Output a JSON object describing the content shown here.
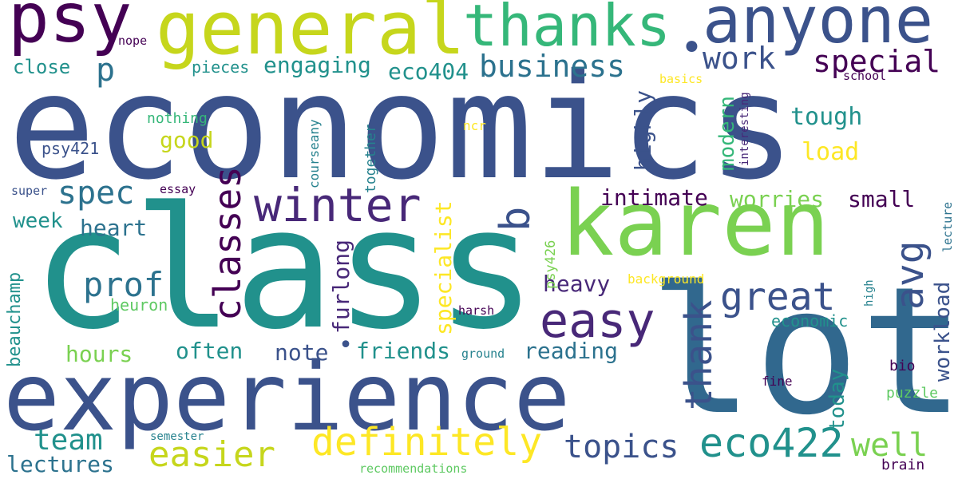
{
  "words": [
    "economics",
    "class",
    "lot",
    "experience",
    "karen",
    "general",
    "anyone",
    "thanks",
    "psy",
    "winter",
    "easy",
    "definitely",
    "eco422",
    "business",
    "great",
    "spec",
    "easier",
    "topics",
    "classes",
    "special",
    "avg",
    "thank",
    "work",
    "b",
    "p",
    "prof",
    "team",
    "well",
    "lectures",
    "eco404",
    "engaging",
    "intimate",
    "worries",
    "small",
    "heart",
    "week",
    "note",
    "friends",
    "reading",
    "often",
    "hours",
    "tough",
    "load",
    "good",
    "heavy",
    "highly",
    "modern",
    "specialist",
    "furlong",
    "beauchamp",
    "workload",
    "today",
    "close",
    "pieces",
    "psy421",
    "heuron",
    "economic",
    "nothing",
    "nope",
    "essay",
    "super",
    "together",
    "courseany",
    "ncr",
    "basics",
    "interesting",
    "school",
    "lecture",
    "psy426",
    "background",
    "harsh",
    "ground",
    "fine",
    "bio",
    "puzzle",
    "brain",
    "semester",
    "recommendations",
    "high",
    "•",
    "•"
  ]
}
